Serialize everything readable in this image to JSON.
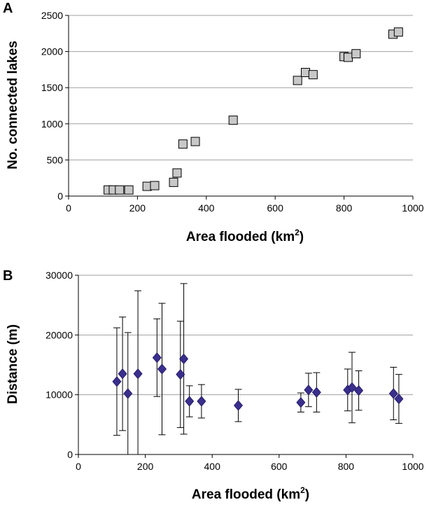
{
  "chart_data": [
    {
      "type": "scatter",
      "panel_label": "A",
      "xlabel": "Area flooded (km",
      "xlabel_sup": "2",
      "xlabel_end": ")",
      "ylabel": "No. connected lakes",
      "xlim": [
        0,
        1000
      ],
      "ylim": [
        0,
        2500
      ],
      "xticks": [
        0,
        200,
        400,
        600,
        800,
        1000
      ],
      "yticks": [
        0,
        500,
        1000,
        1500,
        2000,
        2500
      ],
      "grid": "horizontal",
      "marker": "square",
      "marker_color": "#c8c8c8",
      "points": [
        {
          "x": 115,
          "y": 85
        },
        {
          "x": 130,
          "y": 85
        },
        {
          "x": 148,
          "y": 85
        },
        {
          "x": 175,
          "y": 85
        },
        {
          "x": 228,
          "y": 135
        },
        {
          "x": 250,
          "y": 145
        },
        {
          "x": 305,
          "y": 190
        },
        {
          "x": 315,
          "y": 320
        },
        {
          "x": 332,
          "y": 720
        },
        {
          "x": 368,
          "y": 755
        },
        {
          "x": 478,
          "y": 1050
        },
        {
          "x": 665,
          "y": 1600
        },
        {
          "x": 688,
          "y": 1710
        },
        {
          "x": 710,
          "y": 1680
        },
        {
          "x": 800,
          "y": 1930
        },
        {
          "x": 812,
          "y": 1920
        },
        {
          "x": 835,
          "y": 1970
        },
        {
          "x": 942,
          "y": 2240
        },
        {
          "x": 958,
          "y": 2270
        }
      ]
    },
    {
      "type": "scatter",
      "panel_label": "B",
      "xlabel": "Area flooded (km",
      "xlabel_sup": "2",
      "xlabel_end": ")",
      "ylabel": "Distance (m)",
      "xlim": [
        0,
        1000
      ],
      "ylim": [
        0,
        30000
      ],
      "xticks": [
        0,
        200,
        400,
        600,
        800,
        1000
      ],
      "yticks": [
        0,
        10000,
        20000,
        30000
      ],
      "grid": "horizontal",
      "marker": "diamond",
      "marker_color": "#3a2f8c",
      "error_bars": true,
      "points": [
        {
          "x": 115,
          "y": 12200,
          "err": 9000
        },
        {
          "x": 132,
          "y": 13500,
          "err": 9500
        },
        {
          "x": 148,
          "y": 10200,
          "err": 10200
        },
        {
          "x": 178,
          "y": 13500,
          "err": 13900
        },
        {
          "x": 235,
          "y": 16200,
          "err": 6500
        },
        {
          "x": 250,
          "y": 14300,
          "err": 11000
        },
        {
          "x": 305,
          "y": 13400,
          "err": 8900
        },
        {
          "x": 315,
          "y": 16000,
          "err": 12600
        },
        {
          "x": 332,
          "y": 8900,
          "err": 2600
        },
        {
          "x": 368,
          "y": 8900,
          "err": 2800
        },
        {
          "x": 478,
          "y": 8200,
          "err": 2700
        },
        {
          "x": 665,
          "y": 8700,
          "err": 1600
        },
        {
          "x": 688,
          "y": 10800,
          "err": 2800
        },
        {
          "x": 712,
          "y": 10400,
          "err": 3300
        },
        {
          "x": 805,
          "y": 10800,
          "err": 3500
        },
        {
          "x": 818,
          "y": 11200,
          "err": 5900
        },
        {
          "x": 838,
          "y": 10700,
          "err": 3300
        },
        {
          "x": 942,
          "y": 10200,
          "err": 4400
        },
        {
          "x": 958,
          "y": 9300,
          "err": 4100
        }
      ]
    }
  ]
}
